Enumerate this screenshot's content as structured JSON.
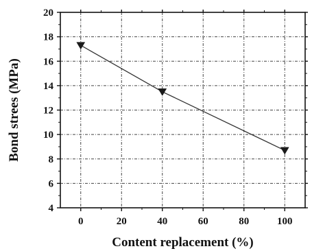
{
  "chart_data": {
    "type": "line",
    "xlabel": "Content replacement (%)",
    "ylabel": "Bond strees (MPa)",
    "xlim": [
      -10,
      110
    ],
    "ylim": [
      4,
      20
    ],
    "xticks": [
      0,
      20,
      40,
      60,
      80,
      100
    ],
    "yticks": [
      4,
      6,
      8,
      10,
      12,
      14,
      16,
      18,
      20
    ],
    "grid": true,
    "marker": "down-triangle",
    "series": [
      {
        "x": [
          0,
          40,
          100
        ],
        "y": [
          17.3,
          13.5,
          8.7
        ]
      }
    ],
    "colors": {
      "line": "#333333",
      "marker": "#1a1a1a",
      "grid": "#444444",
      "axis": "#111111"
    }
  }
}
